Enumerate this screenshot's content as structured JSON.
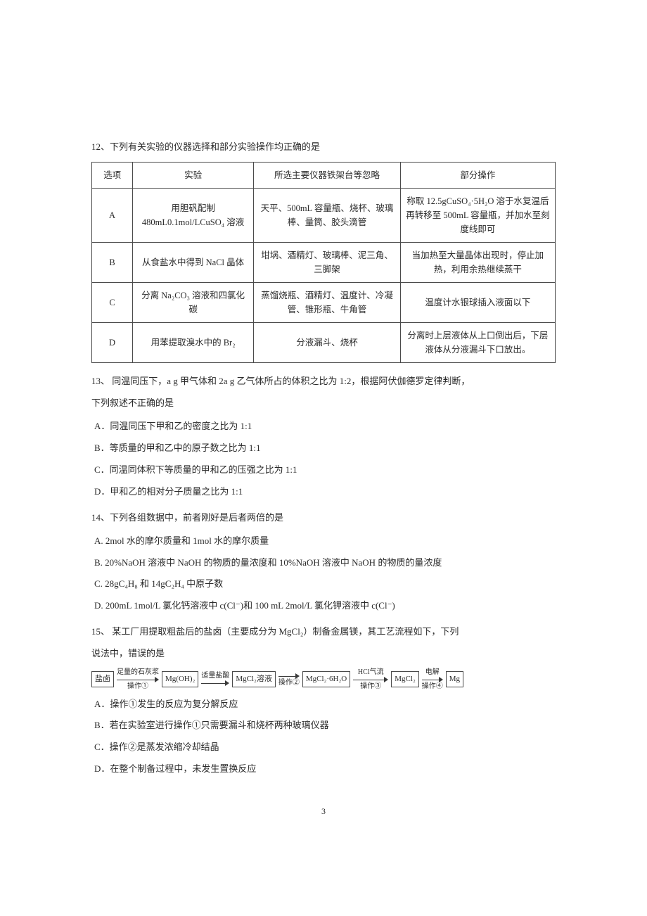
{
  "q12": {
    "title": "12、下列有关实验的仪器选择和部分实验操作均正确的是",
    "headers": [
      "选项",
      "实验",
      "所选主要仪器铁架台等忽略",
      "部分操作"
    ],
    "rows": [
      {
        "opt": "A",
        "exp": "用胆矾配制 480mL0.1mol/LCuSO₄ 溶液",
        "instr": "天平、500mL 容量瓶、烧杯、玻璃棒、量筒、胶头滴管",
        "op": "称取 12.5gCuSO₄·5H₂O 溶于水复温后再转移至 500mL 容量瓶，并加水至刻度线即可"
      },
      {
        "opt": "B",
        "exp": "从食盐水中得到 NaCl 晶体",
        "instr": "坩埚、酒精灯、玻璃棒、泥三角、三脚架",
        "op": "当加热至大量晶体出现时，停止加热，利用余热继续蒸干"
      },
      {
        "opt": "C",
        "exp": "分离 Na₂CO₃ 溶液和四氯化碳",
        "instr": "蒸馏烧瓶、酒精灯、温度计、冷凝管、锥形瓶、牛角管",
        "op": "温度计水银球插入液面以下"
      },
      {
        "opt": "D",
        "exp": "用苯提取溴水中的 Br₂",
        "instr": "分液漏斗、烧杯",
        "op": "分离时上层液体从上口倒出后，下层液体从分液漏斗下口放出。"
      }
    ]
  },
  "q13": {
    "stem1": "13、 同温同压下，a g 甲气体和 2a g 乙气体所占的体积之比为 1:2，根据阿伏伽德罗定律判断，",
    "stem2": "下列叙述不正确的是",
    "choices": [
      "A．同温同压下甲和乙的密度之比为 1:1",
      "B．等质量的甲和乙中的原子数之比为 1:1",
      "C．同温同体积下等质量的甲和乙的压强之比为 1:1",
      "D．甲和乙的相对分子质量之比为 1:1"
    ]
  },
  "q14": {
    "stem": "14、下列各组数据中，前者刚好是后者两倍的是",
    "choices": [
      "A. 2mol 水的摩尔质量和 1mol 水的摩尔质量",
      "B. 20%NaOH 溶液中 NaOH 的物质的量浓度和 10%NaOH 溶液中 NaOH 的物质的量浓度",
      "C. 28gC₄H₈ 和 14gC₂H₄ 中原子数",
      "D. 200mL 1mol/L 氯化钙溶液中 c(Cl⁻)和 100 mL 2mol/L 氯化钾溶液中 c(Cl⁻)"
    ]
  },
  "q15": {
    "stem1": "15、 某工厂用提取粗盐后的盐卤（主要成分为 MgCl₂）制备金属镁，其工艺流程如下，下列",
    "stem2": "说法中，错误的是",
    "flow": {
      "boxes": [
        "盐卤",
        "Mg(OH)₂",
        "MgCl₂溶液",
        "MgCl₂·6H₂O",
        "MgCl₂",
        "Mg"
      ],
      "arrows": [
        {
          "top": "足量的石灰浆",
          "bot": "操作①"
        },
        {
          "top": "适量盐酸",
          "bot": ""
        },
        {
          "top": "",
          "bot": "操作②"
        },
        {
          "top": "HCl气流",
          "bot": "操作③"
        },
        {
          "top": "电解",
          "bot": "操作④"
        }
      ]
    },
    "choices": [
      "A．操作①发生的反应为复分解反应",
      "B．若在实验室进行操作①只需要漏斗和烧杯两种玻璃仪器",
      "C．操作②是蒸发浓缩冷却结晶",
      "D．在整个制备过程中，未发生置换反应"
    ]
  },
  "page_number": "3"
}
